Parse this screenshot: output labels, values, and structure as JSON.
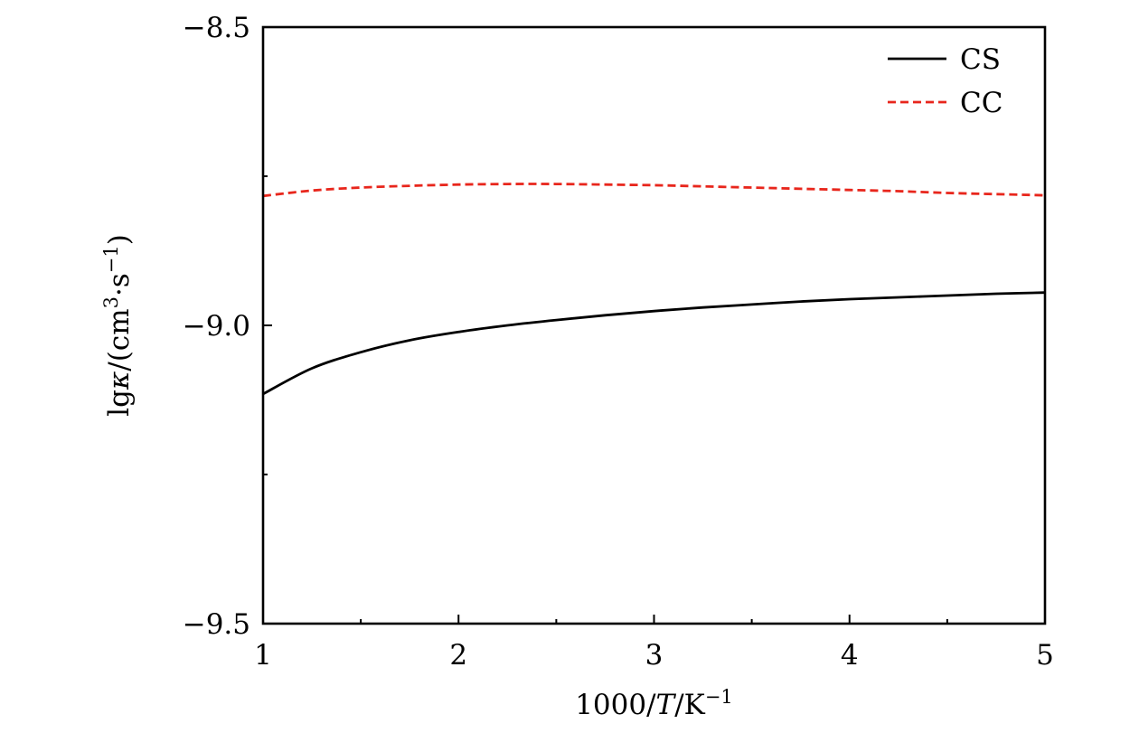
{
  "chart_data": {
    "type": "line",
    "title": "",
    "xlabel": {
      "prefix": "1000/",
      "var": "T",
      "unit": "/K",
      "sup": "−1"
    },
    "ylabel": {
      "prefix": "lg",
      "var": "κ",
      "open": "/(cm",
      "sup1": "3",
      "mid": "·s",
      "sup2": "−1",
      "close": ")"
    },
    "xlim": [
      1,
      5
    ],
    "ylim": [
      -9.5,
      -8.5
    ],
    "xticks": [
      {
        "value": 1,
        "label": "1"
      },
      {
        "value": 2,
        "label": "2"
      },
      {
        "value": 3,
        "label": "3"
      },
      {
        "value": 4,
        "label": "4"
      },
      {
        "value": 5,
        "label": "5"
      }
    ],
    "xminor": [
      1.5,
      2.5,
      3.5,
      4.5
    ],
    "yticks": [
      {
        "value": -9.5,
        "label": "−9.5"
      },
      {
        "value": -9.0,
        "label": "−9.0"
      },
      {
        "value": -8.5,
        "label": "−8.5"
      }
    ],
    "yminor": [
      -9.25,
      -8.75
    ],
    "grid": false,
    "legend": "top-right",
    "series": [
      {
        "name": "CS",
        "color": "#000000",
        "dash": "solid",
        "x": [
          1.0,
          1.25,
          1.5,
          1.75,
          2.0,
          2.25,
          2.5,
          2.75,
          3.0,
          3.25,
          3.5,
          3.75,
          4.0,
          4.25,
          4.5,
          4.75,
          5.0
        ],
        "y": [
          -9.115,
          -9.072,
          -9.045,
          -9.025,
          -9.011,
          -9.0,
          -8.991,
          -8.983,
          -8.976,
          -8.97,
          -8.965,
          -8.96,
          -8.956,
          -8.953,
          -8.95,
          -8.947,
          -8.945
        ]
      },
      {
        "name": "CC",
        "color": "#e8261c",
        "dash": "dashed",
        "x": [
          1.0,
          1.25,
          1.5,
          1.75,
          2.0,
          2.25,
          2.5,
          2.75,
          3.0,
          3.25,
          3.5,
          3.75,
          4.0,
          4.25,
          4.5,
          4.75,
          5.0
        ],
        "y": [
          -8.783,
          -8.774,
          -8.769,
          -8.766,
          -8.764,
          -8.763,
          -8.763,
          -8.764,
          -8.765,
          -8.767,
          -8.769,
          -8.771,
          -8.773,
          -8.775,
          -8.778,
          -8.78,
          -8.782
        ]
      }
    ]
  }
}
